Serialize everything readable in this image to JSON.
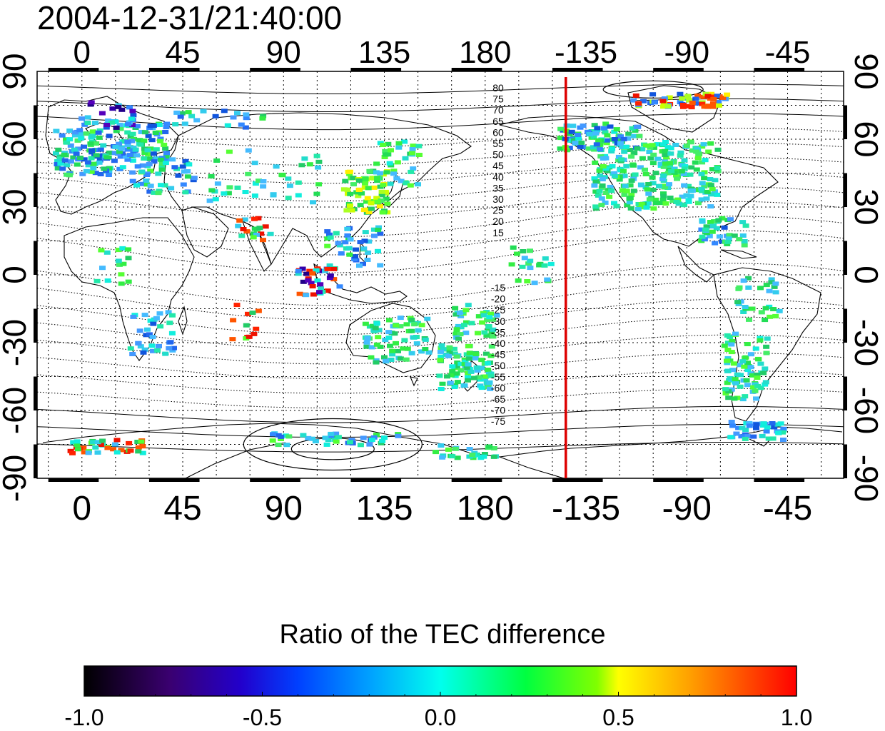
{
  "timestamp": "2004-12-31/21:40:00",
  "map": {
    "lon_ticks": [
      "0",
      "45",
      "90",
      "135",
      "180",
      "-135",
      "-90",
      "-45"
    ],
    "lat_ticks": [
      "90",
      "60",
      "30",
      "0",
      "-30",
      "-60",
      "-90"
    ],
    "lon_range": [
      -20,
      340
    ],
    "lat_range": [
      -90,
      90
    ],
    "marker_meridian_lon": 216,
    "marker_color": "#dd0000",
    "contour_labels_north": [
      "80",
      "75",
      "70",
      "65",
      "60",
      "55",
      "50",
      "45",
      "40",
      "35",
      "30",
      "25",
      "20",
      "15"
    ],
    "contour_labels_south": [
      "-15",
      "-20",
      "-25",
      "-30",
      "-35",
      "-40",
      "-45",
      "-50",
      "-55",
      "-60",
      "-65",
      "-70",
      "-75"
    ]
  },
  "colorbar": {
    "title": "Ratio of the TEC difference",
    "ticks": [
      "-1.0",
      "-0.5",
      "0.0",
      "0.5",
      "1.0"
    ],
    "range": [
      -1.0,
      1.0
    ],
    "colors": [
      "#000000",
      "#440088",
      "#0000ff",
      "#00ffff",
      "#00ff00",
      "#ffff00",
      "#ff0000"
    ]
  }
}
